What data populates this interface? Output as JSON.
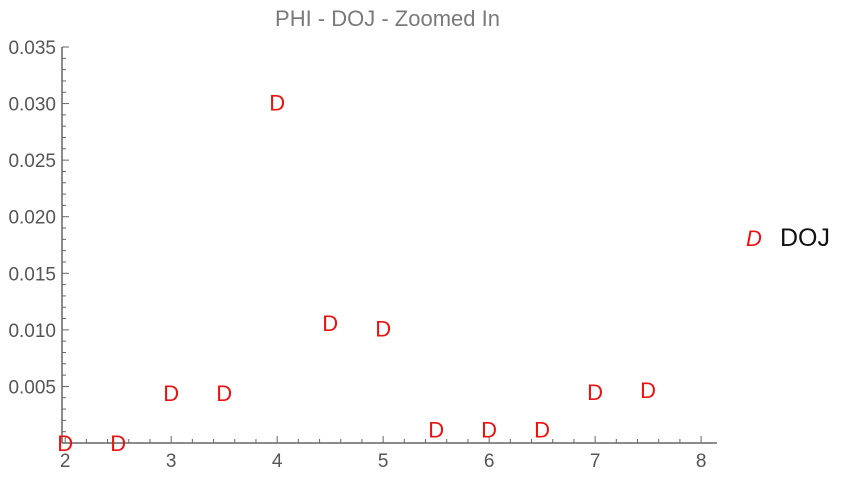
{
  "chart_data": {
    "type": "scatter",
    "title": "PHI - DOJ - Zoomed In",
    "xlabel": "",
    "ylabel": "",
    "xlim": [
      1.97,
      8.15
    ],
    "ylim": [
      0,
      0.035
    ],
    "x_ticks": [
      2,
      3,
      4,
      5,
      6,
      7,
      8
    ],
    "x_tick_labels": [
      "2",
      "3",
      "4",
      "5",
      "6",
      "7",
      "8"
    ],
    "y_ticks": [
      0.005,
      0.01,
      0.015,
      0.02,
      0.025,
      0.03,
      0.035
    ],
    "y_tick_labels": [
      "0.005",
      "0.010",
      "0.015",
      "0.020",
      "0.025",
      "0.030",
      "0.035"
    ],
    "grid": false,
    "legend_position": "right",
    "series": [
      {
        "name": "DOJ",
        "marker": "D",
        "color": "#ee1111",
        "points": [
          {
            "x": 2.0,
            "y": 0.0
          },
          {
            "x": 2.5,
            "y": 0.0
          },
          {
            "x": 3.0,
            "y": 0.0044
          },
          {
            "x": 3.5,
            "y": 0.0044
          },
          {
            "x": 4.0,
            "y": 0.0301
          },
          {
            "x": 4.5,
            "y": 0.0106
          },
          {
            "x": 5.0,
            "y": 0.0101
          },
          {
            "x": 5.5,
            "y": 0.0012
          },
          {
            "x": 6.0,
            "y": 0.0012
          },
          {
            "x": 6.5,
            "y": 0.0012
          },
          {
            "x": 7.0,
            "y": 0.0045
          },
          {
            "x": 7.5,
            "y": 0.0047
          }
        ]
      }
    ]
  }
}
